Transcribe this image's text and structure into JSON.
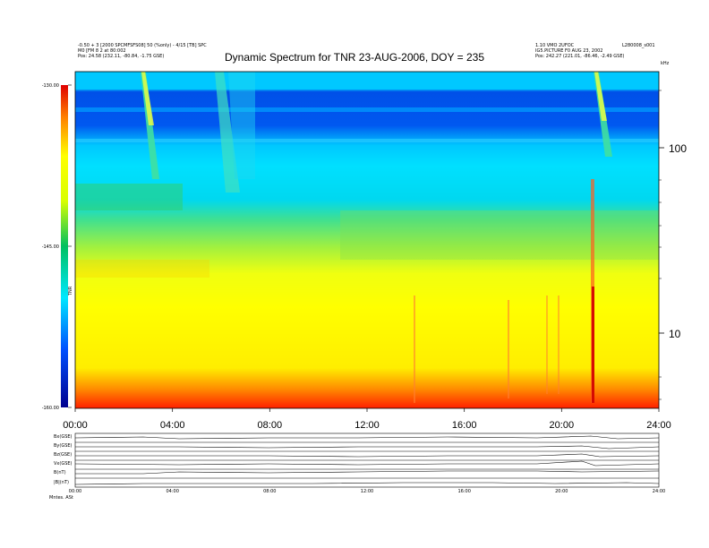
{
  "title": "Dynamic Spectrum for TNR 23-AUG-2006, DOY = 235",
  "header_left": [
    "-0.50 + 3 [2000 SPCMFSFS08] 50 (%only) - 4/15 [TB] SPC",
    "M0 [FM 8 2 at 80:002",
    "Pos:   24.58 (232.11, -80.84, -1.75 GSE)"
  ],
  "header_right": [
    "1.10 VMO 2UFOC",
    "IG5.PICTURE F0 AUG 23, 2002",
    "Pos:   242.27 (221.01, -86.46, -2.49 GSE)"
  ],
  "header_right_top": "L280008_s001",
  "colorbar": {
    "tick_labels": [
      "-130.00",
      "-145.00",
      "-160.00"
    ],
    "label": "TNR"
  },
  "freq_axis": {
    "unit_label": "kHz",
    "tick_labels": [
      "100",
      "10"
    ]
  },
  "time_axis": {
    "tick_labels": [
      "00:00",
      "04:00",
      "08:00",
      "12:00",
      "16:00",
      "20:00",
      "24:00"
    ]
  },
  "panel_labels": [
    "B(nT)",
    "Bx(GSE)",
    "By(GSE)",
    "Bz(GSE)",
    "Vx(GSE)",
    "|B|(nT)"
  ],
  "bottom_tick_labels": [
    "00:00",
    "04:00",
    "08:00",
    "12:00",
    "16:00",
    "20:00",
    "24:00"
  ],
  "bottom_left_label": "Mntes.  ASt",
  "colors": {
    "low": "#0000aa",
    "mid_low": "#00e0ff",
    "mid": "#00d060",
    "mid_high": "#ffff00",
    "high": "#ff2000"
  },
  "chart_data": {
    "type": "heatmap",
    "title": "Dynamic Spectrum for TNR 23-AUG-2006, DOY = 235",
    "x_range": [
      "00:00",
      "24:00"
    ],
    "y_scale": "log",
    "y_unit": "kHz",
    "y_ticks": [
      100,
      10
    ],
    "color_range": [
      -160,
      -130
    ],
    "color_scale_label": "TNR",
    "features": [
      {
        "type": "type-III burst",
        "start": "02:45",
        "end": "03:20"
      },
      {
        "type": "type-III burst",
        "start": "05:50",
        "end": "07:10"
      },
      {
        "type": "type-III burst",
        "start": "21:20",
        "end": "22:00"
      },
      {
        "type": "narrowband emission",
        "time": "21:20"
      }
    ]
  }
}
